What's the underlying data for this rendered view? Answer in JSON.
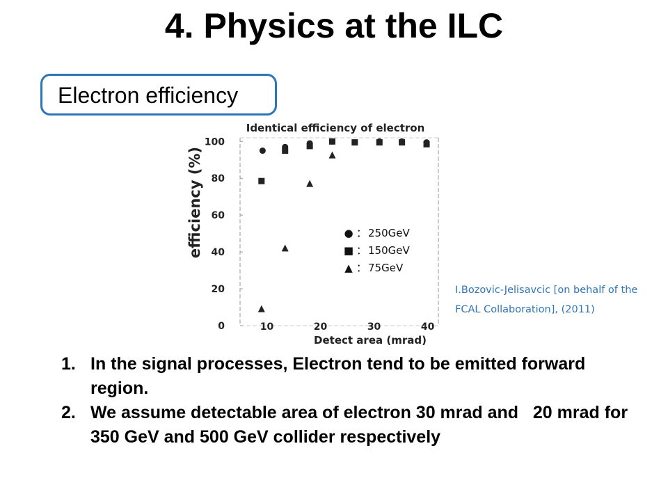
{
  "slide": {
    "title": "4. Physics at the ILC",
    "subtitle": "Electron efficiency",
    "citation": "I.Bozovic-Jelisavcic [on behalf of the FCAL Collaboration], (2011)",
    "points": [
      {
        "number": "1.",
        "text": "In the signal processes, Electron tend to be emitted forward region."
      },
      {
        "number": "2.",
        "text": "We assume detectable area of electron 30 mrad and   20 mrad for 350 GeV and 500 GeV collider respectively"
      }
    ]
  },
  "chart_data": {
    "type": "scatter",
    "title": "Identical efficiency of electron",
    "xlabel": "Detect area (mrad)",
    "ylabel": "efficiency (%)",
    "xlim": [
      5,
      42
    ],
    "ylim": [
      0,
      102
    ],
    "x_ticks": [
      10,
      20,
      30,
      40
    ],
    "y_ticks": [
      0,
      20,
      40,
      60,
      80,
      100
    ],
    "legend_position": "right-middle",
    "series": [
      {
        "name": "250GeV",
        "marker": "circle",
        "symbol": "●",
        "separator": "：",
        "color": "#222222",
        "points": [
          [
            9.2,
            95
          ],
          [
            13.4,
            97
          ],
          [
            18,
            99
          ],
          [
            22.2,
            100
          ],
          [
            26.4,
            99.5
          ],
          [
            31,
            100
          ],
          [
            35.2,
            100
          ],
          [
            39.8,
            99.5
          ]
        ]
      },
      {
        "name": "150GeV",
        "marker": "square",
        "symbol": "■",
        "separator": "：",
        "color": "#222222",
        "points": [
          [
            9,
            78.5
          ],
          [
            13.4,
            95
          ],
          [
            18,
            97.5
          ],
          [
            22.2,
            100
          ],
          [
            26.4,
            99.5
          ],
          [
            31,
            99.5
          ],
          [
            35.2,
            99.5
          ],
          [
            39.8,
            98.5
          ]
        ]
      },
      {
        "name": "75GeV",
        "marker": "triangle",
        "symbol": "▲",
        "separator": "：",
        "color": "#222222",
        "points": [
          [
            9,
            9
          ],
          [
            13.4,
            42
          ],
          [
            18,
            77
          ],
          [
            22.2,
            92.5
          ]
        ]
      }
    ]
  }
}
